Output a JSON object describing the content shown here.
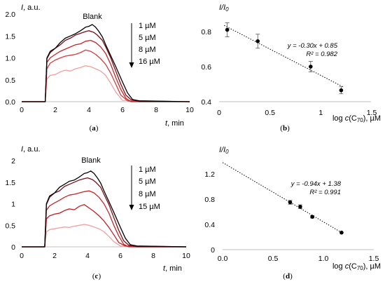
{
  "chart_data": [
    {
      "id": "a",
      "type": "line",
      "panel_label": "(a)",
      "ylabel": "I, a.u.",
      "xlabel": "t, min",
      "xlim": [
        0,
        10
      ],
      "ylim": [
        0,
        2.0
      ],
      "xticks": [
        0,
        2,
        4,
        6,
        8,
        10
      ],
      "yticks": [
        "0.0",
        "0.5",
        "1.0",
        "1.5",
        "2.0"
      ],
      "annotation": "Blank",
      "legend_items": [
        "1 µM",
        "5 µM",
        "8 µM",
        "16 µM"
      ],
      "series": [
        {
          "color": "#000000",
          "x": [
            0,
            1.4,
            1.5,
            1.7,
            2.0,
            2.3,
            2.6,
            2.9,
            3.2,
            3.5,
            3.8,
            4.0,
            4.2,
            4.4,
            4.6,
            4.8,
            5.0,
            5.3,
            5.6,
            6.0,
            6.3,
            6.6,
            7.0,
            10
          ],
          "y": [
            0,
            0,
            1.0,
            1.15,
            1.22,
            1.35,
            1.45,
            1.5,
            1.55,
            1.62,
            1.7,
            1.72,
            1.76,
            1.7,
            1.6,
            1.48,
            1.3,
            1.05,
            0.8,
            0.45,
            0.2,
            0.05,
            0.02,
            0
          ]
        },
        {
          "color": "#7a0e18",
          "x": [
            0,
            1.4,
            1.5,
            1.7,
            2.0,
            2.3,
            2.6,
            2.9,
            3.2,
            3.5,
            3.8,
            4.0,
            4.3,
            4.5,
            4.8,
            5.0,
            5.3,
            5.6,
            5.9,
            6.2,
            6.5,
            7.0,
            10
          ],
          "y": [
            0,
            0,
            0.98,
            1.12,
            1.22,
            1.3,
            1.4,
            1.45,
            1.52,
            1.56,
            1.6,
            1.62,
            1.58,
            1.52,
            1.4,
            1.25,
            1.0,
            0.7,
            0.4,
            0.15,
            0.05,
            0,
            0
          ]
        },
        {
          "color": "#c4262a",
          "x": [
            0,
            1.4,
            1.5,
            1.7,
            2.0,
            2.3,
            2.6,
            2.9,
            3.2,
            3.5,
            3.8,
            4.1,
            4.4,
            4.7,
            5.0,
            5.3,
            5.6,
            5.9,
            6.2,
            6.5,
            10
          ],
          "y": [
            0,
            0,
            0.9,
            1.0,
            1.08,
            1.15,
            1.2,
            1.25,
            1.3,
            1.32,
            1.38,
            1.4,
            1.35,
            1.25,
            1.1,
            0.85,
            0.55,
            0.28,
            0.08,
            0,
            0
          ]
        },
        {
          "color": "#d8393d",
          "x": [
            0,
            1.4,
            1.5,
            1.7,
            2.0,
            2.3,
            2.6,
            2.9,
            3.2,
            3.5,
            3.8,
            4.1,
            4.4,
            4.7,
            5.0,
            5.3,
            5.6,
            5.9,
            6.3,
            10
          ],
          "y": [
            0,
            0,
            0.75,
            0.88,
            0.95,
            1.0,
            1.04,
            1.06,
            1.08,
            1.12,
            1.18,
            1.15,
            1.08,
            0.98,
            0.85,
            0.65,
            0.4,
            0.15,
            0.02,
            0
          ]
        },
        {
          "color": "#f0a0a0",
          "x": [
            0,
            1.4,
            1.5,
            1.7,
            2.0,
            2.3,
            2.6,
            2.9,
            3.2,
            3.5,
            3.8,
            4.1,
            4.4,
            4.7,
            5.0,
            5.3,
            5.6,
            6.0,
            10
          ],
          "y": [
            0,
            0,
            0.52,
            0.6,
            0.62,
            0.68,
            0.72,
            0.7,
            0.75,
            0.78,
            0.82,
            0.8,
            0.75,
            0.7,
            0.6,
            0.42,
            0.22,
            0.03,
            0
          ]
        }
      ]
    },
    {
      "id": "b",
      "type": "scatter",
      "panel_label": "(b)",
      "ylabel": "I/I0",
      "xlabel": "log c(C70), µM",
      "xlim": [
        0,
        1.5
      ],
      "ylim": [
        0.4,
        0.9
      ],
      "xticks": [
        "0",
        "0.5",
        "1",
        "1.5"
      ],
      "yticks": [
        "0.4",
        "0.6",
        "0.8"
      ],
      "equation": "y = -0.30x + 0.85",
      "r2": "R² = 0.982",
      "points": [
        {
          "x": 0.08,
          "y": 0.81,
          "err": 0.04
        },
        {
          "x": 0.38,
          "y": 0.745,
          "err": 0.04
        },
        {
          "x": 0.9,
          "y": 0.6,
          "err": 0.03
        },
        {
          "x": 1.2,
          "y": 0.465,
          "err": 0.02
        }
      ],
      "trend": {
        "slope": -0.3,
        "intercept": 0.85,
        "x_range": [
          0.05,
          1.22
        ]
      }
    },
    {
      "id": "c",
      "type": "line",
      "panel_label": "(c)",
      "ylabel": "I, a.u.",
      "xlabel": "t, min",
      "xlim": [
        0,
        10
      ],
      "ylim": [
        0,
        2
      ],
      "xticks": [
        0,
        2,
        4,
        6,
        8,
        10
      ],
      "yticks": [
        "0",
        "0.5",
        "1",
        "1.5",
        "2"
      ],
      "annotation": "Blank",
      "legend_items": [
        "1 µM",
        "5 µM",
        "8 µM",
        "15 µM"
      ],
      "series": [
        {
          "color": "#000000",
          "x": [
            0,
            1.4,
            1.5,
            1.7,
            2.0,
            2.3,
            2.6,
            2.9,
            3.2,
            3.5,
            3.8,
            4.0,
            4.2,
            4.4,
            4.6,
            4.8,
            5.0,
            5.3,
            5.6,
            6.0,
            6.3,
            6.6,
            7.0,
            10
          ],
          "y": [
            0,
            0,
            1.0,
            1.18,
            1.25,
            1.38,
            1.45,
            1.52,
            1.55,
            1.62,
            1.7,
            1.72,
            1.76,
            1.7,
            1.6,
            1.48,
            1.3,
            1.05,
            0.8,
            0.45,
            0.2,
            0.05,
            0.02,
            0
          ]
        },
        {
          "color": "#7a0e18",
          "x": [
            0,
            1.4,
            1.5,
            1.7,
            2.0,
            2.3,
            2.6,
            2.9,
            3.2,
            3.5,
            3.8,
            4.0,
            4.3,
            4.5,
            4.8,
            5.0,
            5.3,
            5.6,
            5.9,
            6.2,
            6.5,
            7.0,
            10
          ],
          "y": [
            0,
            0,
            0.98,
            1.15,
            1.25,
            1.3,
            1.4,
            1.45,
            1.5,
            1.55,
            1.58,
            1.6,
            1.56,
            1.5,
            1.38,
            1.22,
            0.98,
            0.68,
            0.38,
            0.14,
            0.04,
            0,
            0
          ]
        },
        {
          "color": "#c4262a",
          "x": [
            0,
            1.4,
            1.5,
            1.7,
            2.0,
            2.3,
            2.6,
            2.9,
            3.2,
            3.5,
            3.8,
            4.1,
            4.4,
            4.7,
            5.0,
            5.3,
            5.6,
            5.9,
            6.2,
            6.5,
            10
          ],
          "y": [
            0,
            0,
            0.85,
            0.95,
            1.02,
            1.08,
            1.15,
            1.2,
            1.22,
            1.25,
            1.28,
            1.3,
            1.25,
            1.15,
            1.0,
            0.78,
            0.5,
            0.25,
            0.06,
            0,
            0
          ]
        },
        {
          "color": "#c01e22",
          "x": [
            0,
            1.4,
            1.5,
            1.7,
            2.0,
            2.3,
            2.6,
            2.9,
            3.2,
            3.5,
            3.8,
            4.1,
            4.4,
            4.7,
            5.0,
            5.3,
            5.6,
            5.9,
            6.3,
            10
          ],
          "y": [
            0,
            0,
            0.65,
            0.72,
            0.76,
            0.78,
            0.84,
            0.88,
            0.86,
            0.94,
            0.98,
            0.9,
            0.82,
            0.72,
            0.6,
            0.45,
            0.28,
            0.1,
            0.02,
            0
          ]
        },
        {
          "color": "#f0a0a0",
          "x": [
            0,
            1.4,
            1.5,
            1.7,
            2.0,
            2.3,
            2.6,
            2.9,
            3.2,
            3.5,
            3.8,
            4.1,
            4.4,
            4.7,
            5.0,
            5.3,
            5.6,
            6.0,
            10
          ],
          "y": [
            0,
            0,
            0.35,
            0.4,
            0.42,
            0.44,
            0.46,
            0.45,
            0.48,
            0.5,
            0.52,
            0.5,
            0.46,
            0.42,
            0.35,
            0.24,
            0.12,
            0.02,
            0
          ]
        }
      ]
    },
    {
      "id": "d",
      "type": "scatter",
      "panel_label": "(d)",
      "ylabel": "I/I0",
      "xlabel": "log c(C70), µM",
      "xlim": [
        0,
        1.5
      ],
      "ylim": [
        0,
        1.5
      ],
      "xticks": [
        "0.0",
        "0.5",
        "1.0",
        "1.5"
      ],
      "yticks": [
        "0",
        "0.4",
        "0.8",
        "1.2"
      ],
      "equation": "y = -0.94x + 1.38",
      "r2": "R² = 0.991",
      "points": [
        {
          "x": 0.67,
          "y": 0.75,
          "err": 0.03
        },
        {
          "x": 0.77,
          "y": 0.68,
          "err": 0.03
        },
        {
          "x": 0.89,
          "y": 0.52,
          "err": 0.02
        },
        {
          "x": 1.18,
          "y": 0.27,
          "err": 0.0
        }
      ],
      "trend": {
        "slope": -0.94,
        "intercept": 1.38,
        "x_range": [
          0.0,
          1.18
        ]
      }
    }
  ]
}
